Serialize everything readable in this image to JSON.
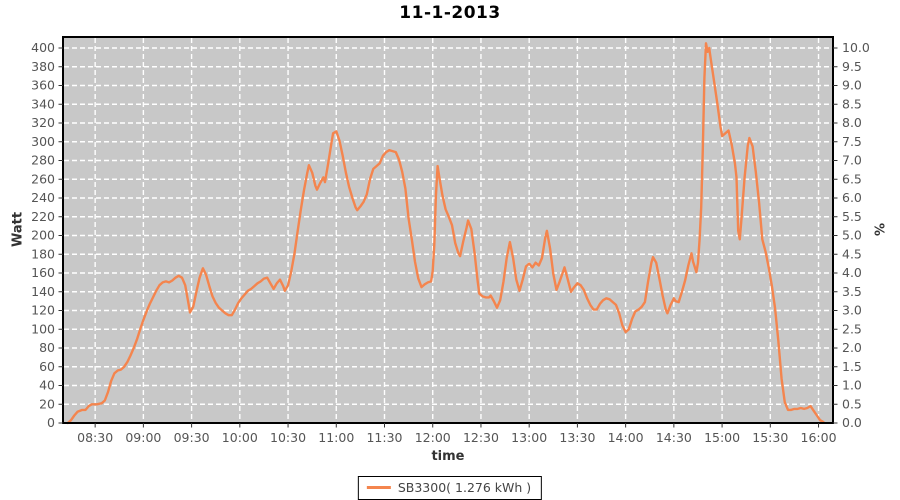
{
  "chart": {
    "title": "11-1-2013",
    "y_left_label": "Watt",
    "y_right_label": "%",
    "x_label": "time",
    "legend_label": "SB3300( 1.276 kWh )"
  },
  "colors": {
    "line": "#F4854E",
    "plot_bg": "#C8C8C8",
    "grid": "#FFFFFF",
    "border": "#000000",
    "tick_text": "#555555",
    "axis_label_text": "#333333"
  },
  "chart_data": {
    "type": "line",
    "title": "11-1-2013",
    "xlabel": "time",
    "ylabel_left": "Watt",
    "ylabel_right": "%",
    "ylim_left": [
      0,
      400
    ],
    "ylim_right": [
      0.0,
      10.0
    ],
    "x_domain_minutes": [
      490,
      969
    ],
    "grid": "white dashed on gray background",
    "legend_position": "bottom-center",
    "watt_ticks": [
      0,
      20,
      40,
      60,
      80,
      100,
      120,
      140,
      160,
      180,
      200,
      220,
      240,
      260,
      280,
      300,
      320,
      340,
      360,
      380,
      400
    ],
    "pct_ticks": [
      "0.0",
      "0.5",
      "1.0",
      "1.5",
      "2.0",
      "2.5",
      "3.0",
      "3.5",
      "4.0",
      "4.5",
      "5.0",
      "5.5",
      "6.0",
      "6.5",
      "7.0",
      "7.5",
      "8.0",
      "8.5",
      "9.0",
      "9.5",
      "10.0"
    ],
    "time_ticks": [
      "08:30",
      "09:00",
      "09:30",
      "10:00",
      "10:30",
      "11:00",
      "11:30",
      "12:00",
      "12:30",
      "13:00",
      "13:30",
      "14:00",
      "14:30",
      "15:00",
      "15:30",
      "16:00"
    ],
    "series": [
      {
        "name": "SB3300( 1.276 kWh )",
        "color": "#F4854E",
        "points": [
          [
            "08:13",
            0
          ],
          [
            "08:15",
            3
          ],
          [
            "08:17",
            8
          ],
          [
            "08:19",
            12
          ],
          [
            "08:22",
            14
          ],
          [
            "08:24",
            14
          ],
          [
            "08:26",
            18
          ],
          [
            "08:28",
            20
          ],
          [
            "08:31",
            20
          ],
          [
            "08:34",
            21
          ],
          [
            "08:36",
            24
          ],
          [
            "08:38",
            33
          ],
          [
            "08:40",
            45
          ],
          [
            "08:42",
            53
          ],
          [
            "08:44",
            56
          ],
          [
            "08:46",
            57
          ],
          [
            "08:48",
            60
          ],
          [
            "08:50",
            65
          ],
          [
            "08:52",
            72
          ],
          [
            "08:54",
            80
          ],
          [
            "08:56",
            89
          ],
          [
            "08:58",
            100
          ],
          [
            "09:00",
            110
          ],
          [
            "09:02",
            119
          ],
          [
            "09:04",
            127
          ],
          [
            "09:06",
            134
          ],
          [
            "09:08",
            141
          ],
          [
            "09:10",
            147
          ],
          [
            "09:12",
            150
          ],
          [
            "09:14",
            151
          ],
          [
            "09:16",
            150
          ],
          [
            "09:18",
            152
          ],
          [
            "09:20",
            155
          ],
          [
            "09:22",
            157
          ],
          [
            "09:24",
            155
          ],
          [
            "09:26",
            147
          ],
          [
            "09:28",
            128
          ],
          [
            "09:29",
            118
          ],
          [
            "09:31",
            124
          ],
          [
            "09:33",
            140
          ],
          [
            "09:35",
            155
          ],
          [
            "09:37",
            165
          ],
          [
            "09:39",
            158
          ],
          [
            "09:41",
            146
          ],
          [
            "09:43",
            135
          ],
          [
            "09:45",
            128
          ],
          [
            "09:47",
            123
          ],
          [
            "09:49",
            120
          ],
          [
            "09:51",
            117
          ],
          [
            "09:53",
            115
          ],
          [
            "09:55",
            115
          ],
          [
            "09:57",
            121
          ],
          [
            "09:59",
            128
          ],
          [
            "10:01",
            133
          ],
          [
            "10:03",
            137
          ],
          [
            "10:05",
            141
          ],
          [
            "10:07",
            143
          ],
          [
            "10:09",
            146
          ],
          [
            "10:11",
            149
          ],
          [
            "10:13",
            151
          ],
          [
            "10:15",
            154
          ],
          [
            "10:17",
            155
          ],
          [
            "10:19",
            149
          ],
          [
            "10:21",
            143
          ],
          [
            "10:23",
            149
          ],
          [
            "10:25",
            153
          ],
          [
            "10:27",
            146
          ],
          [
            "10:28",
            141
          ],
          [
            "10:30",
            147
          ],
          [
            "10:32",
            162
          ],
          [
            "10:34",
            181
          ],
          [
            "10:36",
            205
          ],
          [
            "10:38",
            228
          ],
          [
            "10:40",
            249
          ],
          [
            "10:42",
            267
          ],
          [
            "10:43",
            275
          ],
          [
            "10:45",
            267
          ],
          [
            "10:47",
            253
          ],
          [
            "10:48",
            249
          ],
          [
            "10:50",
            256
          ],
          [
            "10:52",
            262
          ],
          [
            "10:53",
            257
          ],
          [
            "10:55",
            277
          ],
          [
            "10:57",
            299
          ],
          [
            "10:58",
            309
          ],
          [
            "11:00",
            311
          ],
          [
            "11:02",
            301
          ],
          [
            "11:04",
            285
          ],
          [
            "11:06",
            267
          ],
          [
            "11:08",
            252
          ],
          [
            "11:10",
            240
          ],
          [
            "11:12",
            230
          ],
          [
            "11:13",
            227
          ],
          [
            "11:15",
            231
          ],
          [
            "11:17",
            236
          ],
          [
            "11:19",
            244
          ],
          [
            "11:21",
            260
          ],
          [
            "11:23",
            271
          ],
          [
            "11:25",
            274
          ],
          [
            "11:27",
            277
          ],
          [
            "11:29",
            285
          ],
          [
            "11:31",
            289
          ],
          [
            "11:33",
            291
          ],
          [
            "11:35",
            290
          ],
          [
            "11:37",
            289
          ],
          [
            "11:39",
            281
          ],
          [
            "11:41",
            268
          ],
          [
            "11:43",
            250
          ],
          [
            "11:45",
            218
          ],
          [
            "11:47",
            196
          ],
          [
            "11:49",
            172
          ],
          [
            "11:51",
            154
          ],
          [
            "11:53",
            145
          ],
          [
            "11:55",
            148
          ],
          [
            "11:57",
            150
          ],
          [
            "11:59",
            151
          ],
          [
            "12:00",
            162
          ],
          [
            "12:01",
            190
          ],
          [
            "12:02",
            242
          ],
          [
            "12:03",
            274
          ],
          [
            "12:04",
            263
          ],
          [
            "12:06",
            243
          ],
          [
            "12:08",
            228
          ],
          [
            "12:10",
            220
          ],
          [
            "12:12",
            211
          ],
          [
            "12:14",
            192
          ],
          [
            "12:16",
            181
          ],
          [
            "12:17",
            178
          ],
          [
            "12:19",
            194
          ],
          [
            "12:21",
            208
          ],
          [
            "12:22",
            216
          ],
          [
            "12:24",
            207
          ],
          [
            "12:26",
            182
          ],
          [
            "12:28",
            151
          ],
          [
            "12:29",
            138
          ],
          [
            "12:31",
            135
          ],
          [
            "12:33",
            134
          ],
          [
            "12:35",
            134
          ],
          [
            "12:36",
            136
          ],
          [
            "12:38",
            130
          ],
          [
            "12:40",
            123
          ],
          [
            "12:42",
            131
          ],
          [
            "12:44",
            151
          ],
          [
            "12:46",
            176
          ],
          [
            "12:48",
            193
          ],
          [
            "12:50",
            176
          ],
          [
            "12:52",
            153
          ],
          [
            "12:54",
            141
          ],
          [
            "12:56",
            153
          ],
          [
            "12:58",
            167
          ],
          [
            "13:00",
            170
          ],
          [
            "13:02",
            166
          ],
          [
            "13:04",
            171
          ],
          [
            "13:06",
            168
          ],
          [
            "13:08",
            176
          ],
          [
            "13:10",
            198
          ],
          [
            "13:11",
            205
          ],
          [
            "13:13",
            186
          ],
          [
            "13:15",
            159
          ],
          [
            "13:17",
            142
          ],
          [
            "13:19",
            151
          ],
          [
            "13:21",
            161
          ],
          [
            "13:22",
            166
          ],
          [
            "13:24",
            153
          ],
          [
            "13:26",
            140
          ],
          [
            "13:28",
            145
          ],
          [
            "13:30",
            149
          ],
          [
            "13:32",
            147
          ],
          [
            "13:34",
            142
          ],
          [
            "13:36",
            133
          ],
          [
            "13:38",
            126
          ],
          [
            "13:40",
            121
          ],
          [
            "13:42",
            121
          ],
          [
            "13:44",
            127
          ],
          [
            "13:46",
            131
          ],
          [
            "13:48",
            133
          ],
          [
            "13:50",
            132
          ],
          [
            "13:52",
            129
          ],
          [
            "13:54",
            126
          ],
          [
            "13:56",
            117
          ],
          [
            "13:58",
            104
          ],
          [
            "14:00",
            97
          ],
          [
            "14:02",
            100
          ],
          [
            "14:04",
            111
          ],
          [
            "14:06",
            119
          ],
          [
            "14:08",
            121
          ],
          [
            "14:10",
            124
          ],
          [
            "14:12",
            129
          ],
          [
            "14:14",
            151
          ],
          [
            "14:16",
            171
          ],
          [
            "14:17",
            177
          ],
          [
            "14:19",
            171
          ],
          [
            "14:21",
            154
          ],
          [
            "14:23",
            136
          ],
          [
            "14:25",
            121
          ],
          [
            "14:26",
            117
          ],
          [
            "14:28",
            126
          ],
          [
            "14:30",
            133
          ],
          [
            "14:31",
            130
          ],
          [
            "14:33",
            129
          ],
          [
            "14:35",
            140
          ],
          [
            "14:37",
            152
          ],
          [
            "14:39",
            168
          ],
          [
            "14:41",
            181
          ],
          [
            "14:42",
            172
          ],
          [
            "14:44",
            161
          ],
          [
            "14:45",
            171
          ],
          [
            "14:46",
            196
          ],
          [
            "14:47",
            230
          ],
          [
            "14:48",
            292
          ],
          [
            "14:49",
            368
          ],
          [
            "14:50",
            405
          ],
          [
            "14:51",
            396
          ],
          [
            "14:52",
            400
          ],
          [
            "14:53",
            388
          ],
          [
            "14:55",
            365
          ],
          [
            "14:57",
            341
          ],
          [
            "14:59",
            316
          ],
          [
            "15:00",
            306
          ],
          [
            "15:02",
            309
          ],
          [
            "15:04",
            312
          ],
          [
            "15:06",
            297
          ],
          [
            "15:08",
            277
          ],
          [
            "15:09",
            262
          ],
          [
            "15:10",
            205
          ],
          [
            "15:11",
            196
          ],
          [
            "15:12",
            217
          ],
          [
            "15:14",
            262
          ],
          [
            "15:16",
            296
          ],
          [
            "15:17",
            304
          ],
          [
            "15:19",
            295
          ],
          [
            "15:21",
            268
          ],
          [
            "15:23",
            235
          ],
          [
            "15:25",
            196
          ],
          [
            "15:27",
            183
          ],
          [
            "15:29",
            166
          ],
          [
            "15:31",
            146
          ],
          [
            "15:33",
            122
          ],
          [
            "15:35",
            88
          ],
          [
            "15:37",
            47
          ],
          [
            "15:39",
            22
          ],
          [
            "15:41",
            14
          ],
          [
            "15:43",
            14
          ],
          [
            "15:45",
            15
          ],
          [
            "15:47",
            15
          ],
          [
            "15:49",
            16
          ],
          [
            "15:51",
            15
          ],
          [
            "15:53",
            16
          ],
          [
            "15:55",
            18
          ],
          [
            "15:57",
            13
          ],
          [
            "15:59",
            8
          ],
          [
            "16:01",
            3
          ],
          [
            "16:03",
            1
          ]
        ]
      }
    ]
  }
}
